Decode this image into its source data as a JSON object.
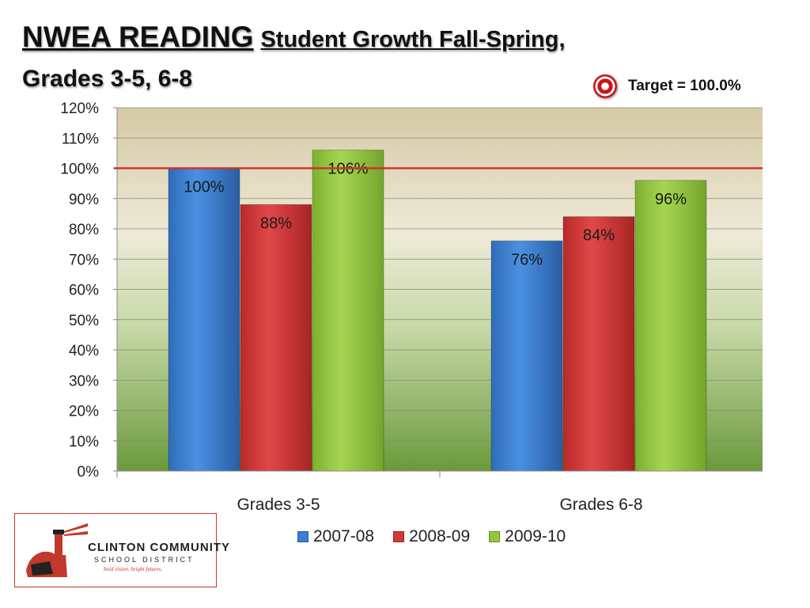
{
  "header": {
    "title_main": "NWEA READING",
    "title_rest": "Student Growth Fall-Spring,",
    "subtitle": "Grades 3-5, 6-8"
  },
  "target": {
    "label": "Target = 100.0%",
    "icon": "target-bullseye-icon",
    "value": 100
  },
  "colors": {
    "series_2007_08": "#3a7fd5",
    "series_2008_09": "#d43a3a",
    "series_2009_10": "#92c83e",
    "target_line": "#cc3333"
  },
  "chart_data": {
    "type": "bar",
    "categories": [
      "Grades 3-5",
      "Grades 6-8"
    ],
    "series": [
      {
        "name": "2007-08",
        "values": [
          100,
          76
        ],
        "labels": [
          "100%",
          "76%"
        ]
      },
      {
        "name": "2008-09",
        "values": [
          88,
          84
        ],
        "labels": [
          "88%",
          "84%"
        ]
      },
      {
        "name": "2009-10",
        "values": [
          106,
          96
        ],
        "labels": [
          "106%",
          "96%"
        ]
      }
    ],
    "ylim": [
      0,
      120
    ],
    "yticks": [
      0,
      10,
      20,
      30,
      40,
      50,
      60,
      70,
      80,
      90,
      100,
      110,
      120
    ],
    "ytick_labels": [
      "0%",
      "10%",
      "20%",
      "30%",
      "40%",
      "50%",
      "60%",
      "70%",
      "80%",
      "90%",
      "100%",
      "110%",
      "120%"
    ],
    "reference_line": 100,
    "grid": true,
    "legend_position": "bottom"
  },
  "logo": {
    "name": "CLINTON COMMUNITY",
    "sub": "SCHOOL DISTRICT",
    "tagline": "bold vision. bright futures.",
    "icon": "lighthouse-logo-icon"
  }
}
